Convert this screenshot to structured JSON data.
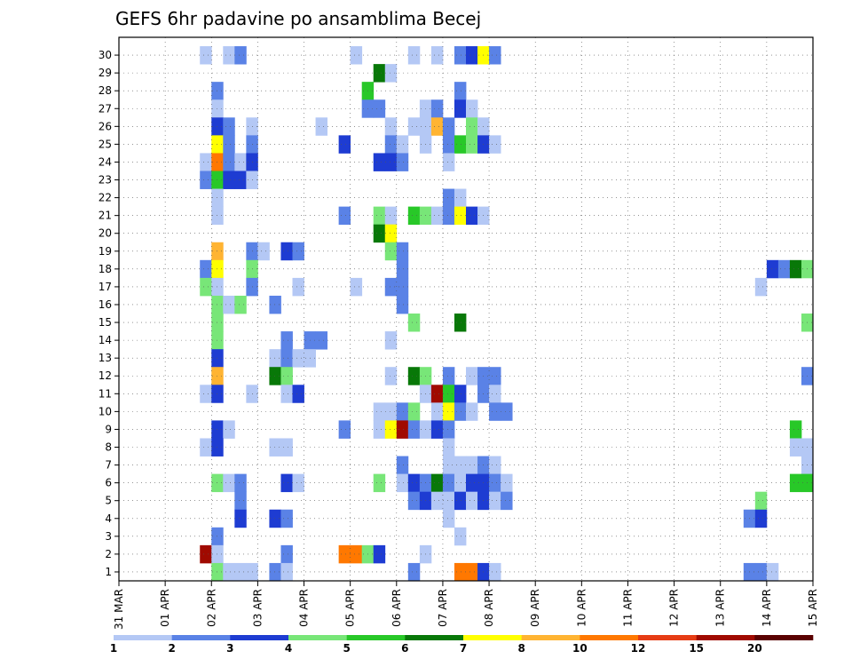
{
  "chart_data": {
    "type": "heatmap",
    "title": "GEFS 6hr padavine po ansamblima Becej",
    "xlabel": "",
    "ylabel": "",
    "x_ticks": [
      "31 MAR",
      "01 APR",
      "02 APR",
      "03 APR",
      "04 APR",
      "05 APR",
      "06 APR",
      "07 APR",
      "08 APR",
      "09 APR",
      "10 APR",
      "11 APR",
      "12 APR",
      "13 APR",
      "14 APR",
      "15 APR"
    ],
    "y_ticks": [
      "1",
      "2",
      "3",
      "4",
      "5",
      "6",
      "7",
      "8",
      "9",
      "10",
      "11",
      "12",
      "13",
      "14",
      "15",
      "16",
      "17",
      "18",
      "19",
      "20",
      "21",
      "22",
      "23",
      "24",
      "25",
      "26",
      "27",
      "28",
      "29",
      "30"
    ],
    "x_unit": "6-hour step since 31 MAR 00Z",
    "xlim": [
      0,
      60
    ],
    "ylim": [
      0.5,
      30.5
    ],
    "grid": true,
    "legend_placement": "bottom",
    "legend": {
      "levels": [
        "1",
        "2",
        "3",
        "4",
        "5",
        "6",
        "7",
        "8",
        "10",
        "12",
        "15",
        "20"
      ],
      "colors": [
        "#b4c8f5",
        "#5a82e6",
        "#1e3cd2",
        "#78e678",
        "#28c828",
        "#087808",
        "#ffff00",
        "#ffb432",
        "#ff7800",
        "#e63c14",
        "#a00a00",
        "#5a0000"
      ]
    },
    "cells": [
      [
        7,
        30,
        0
      ],
      [
        9,
        30,
        0
      ],
      [
        10,
        30,
        1
      ],
      [
        20,
        30,
        0
      ],
      [
        25,
        30,
        0
      ],
      [
        27,
        30,
        0
      ],
      [
        29,
        30,
        1
      ],
      [
        30,
        30,
        2
      ],
      [
        31,
        30,
        6
      ],
      [
        32,
        30,
        1
      ],
      [
        22,
        29,
        5
      ],
      [
        23,
        29,
        0
      ],
      [
        8,
        28,
        1
      ],
      [
        21,
        28,
        4
      ],
      [
        29,
        28,
        1
      ],
      [
        8,
        27,
        0
      ],
      [
        21,
        27,
        1
      ],
      [
        22,
        27,
        1
      ],
      [
        26,
        27,
        0
      ],
      [
        27,
        27,
        1
      ],
      [
        29,
        27,
        2
      ],
      [
        30,
        27,
        0
      ],
      [
        8,
        26,
        2
      ],
      [
        9,
        26,
        1
      ],
      [
        11,
        26,
        0
      ],
      [
        17,
        26,
        0
      ],
      [
        30,
        26,
        3
      ],
      [
        31,
        26,
        0
      ],
      [
        23,
        26,
        0
      ],
      [
        25,
        26,
        0
      ],
      [
        26,
        26,
        0
      ],
      [
        27,
        26,
        7
      ],
      [
        28,
        26,
        1
      ],
      [
        8,
        25,
        6
      ],
      [
        9,
        25,
        1
      ],
      [
        11,
        25,
        1
      ],
      [
        19,
        25,
        2
      ],
      [
        23,
        25,
        1
      ],
      [
        24,
        25,
        0
      ],
      [
        26,
        25,
        0
      ],
      [
        28,
        25,
        1
      ],
      [
        29,
        25,
        4
      ],
      [
        30,
        25,
        3
      ],
      [
        31,
        25,
        2
      ],
      [
        32,
        25,
        0
      ],
      [
        7,
        24,
        0
      ],
      [
        8,
        24,
        8
      ],
      [
        9,
        24,
        1
      ],
      [
        10,
        24,
        0
      ],
      [
        11,
        24,
        2
      ],
      [
        22,
        24,
        2
      ],
      [
        23,
        24,
        2
      ],
      [
        24,
        24,
        1
      ],
      [
        28,
        24,
        0
      ],
      [
        7,
        23,
        1
      ],
      [
        8,
        23,
        4
      ],
      [
        9,
        23,
        2
      ],
      [
        10,
        23,
        2
      ],
      [
        11,
        23,
        0
      ],
      [
        8,
        22,
        0
      ],
      [
        28,
        22,
        1
      ],
      [
        29,
        22,
        0
      ],
      [
        8,
        21,
        0
      ],
      [
        19,
        21,
        1
      ],
      [
        22,
        21,
        3
      ],
      [
        23,
        21,
        0
      ],
      [
        25,
        21,
        4
      ],
      [
        26,
        21,
        3
      ],
      [
        27,
        21,
        0
      ],
      [
        28,
        21,
        1
      ],
      [
        29,
        21,
        6
      ],
      [
        30,
        21,
        2
      ],
      [
        31,
        21,
        0
      ],
      [
        22,
        20,
        5
      ],
      [
        23,
        20,
        6
      ],
      [
        8,
        19,
        7
      ],
      [
        11,
        19,
        1
      ],
      [
        12,
        19,
        0
      ],
      [
        14,
        19,
        2
      ],
      [
        15,
        19,
        1
      ],
      [
        23,
        19,
        3
      ],
      [
        24,
        19,
        1
      ],
      [
        7,
        18,
        1
      ],
      [
        8,
        18,
        6
      ],
      [
        11,
        18,
        3
      ],
      [
        24,
        18,
        1
      ],
      [
        56,
        18,
        2
      ],
      [
        57,
        18,
        1
      ],
      [
        58,
        18,
        5
      ],
      [
        59,
        18,
        3
      ],
      [
        7,
        17,
        3
      ],
      [
        8,
        17,
        0
      ],
      [
        11,
        17,
        1
      ],
      [
        15,
        17,
        0
      ],
      [
        20,
        17,
        0
      ],
      [
        23,
        17,
        1
      ],
      [
        24,
        17,
        1
      ],
      [
        55,
        17,
        0
      ],
      [
        8,
        16,
        3
      ],
      [
        9,
        16,
        0
      ],
      [
        10,
        16,
        3
      ],
      [
        13,
        16,
        1
      ],
      [
        24,
        16,
        1
      ],
      [
        8,
        15,
        3
      ],
      [
        25,
        15,
        3
      ],
      [
        29,
        15,
        5
      ],
      [
        59,
        15,
        3
      ],
      [
        8,
        14,
        3
      ],
      [
        14,
        14,
        1
      ],
      [
        16,
        14,
        1
      ],
      [
        17,
        14,
        1
      ],
      [
        23,
        14,
        0
      ],
      [
        8,
        13,
        2
      ],
      [
        13,
        13,
        0
      ],
      [
        14,
        13,
        1
      ],
      [
        15,
        13,
        0
      ],
      [
        16,
        13,
        0
      ],
      [
        8,
        12,
        7
      ],
      [
        13,
        12,
        5
      ],
      [
        14,
        12,
        3
      ],
      [
        23,
        12,
        0
      ],
      [
        25,
        12,
        5
      ],
      [
        26,
        12,
        3
      ],
      [
        28,
        12,
        1
      ],
      [
        30,
        12,
        0
      ],
      [
        31,
        12,
        1
      ],
      [
        32,
        12,
        1
      ],
      [
        59,
        12,
        1
      ],
      [
        7,
        11,
        0
      ],
      [
        8,
        11,
        2
      ],
      [
        11,
        11,
        0
      ],
      [
        14,
        11,
        0
      ],
      [
        15,
        11,
        2
      ],
      [
        26,
        11,
        0
      ],
      [
        27,
        11,
        10
      ],
      [
        28,
        11,
        4
      ],
      [
        29,
        11,
        2
      ],
      [
        31,
        11,
        1
      ],
      [
        32,
        11,
        0
      ],
      [
        22,
        10,
        0
      ],
      [
        23,
        10,
        0
      ],
      [
        24,
        10,
        1
      ],
      [
        25,
        10,
        3
      ],
      [
        27,
        10,
        0
      ],
      [
        28,
        10,
        6
      ],
      [
        29,
        10,
        1
      ],
      [
        30,
        10,
        0
      ],
      [
        32,
        10,
        1
      ],
      [
        33,
        10,
        1
      ],
      [
        8,
        9,
        2
      ],
      [
        9,
        9,
        0
      ],
      [
        19,
        9,
        1
      ],
      [
        22,
        9,
        0
      ],
      [
        23,
        9,
        6
      ],
      [
        24,
        9,
        10
      ],
      [
        25,
        9,
        1
      ],
      [
        26,
        9,
        0
      ],
      [
        27,
        9,
        2
      ],
      [
        28,
        9,
        1
      ],
      [
        58,
        9,
        4
      ],
      [
        7,
        8,
        0
      ],
      [
        8,
        8,
        2
      ],
      [
        13,
        8,
        0
      ],
      [
        14,
        8,
        0
      ],
      [
        28,
        8,
        0
      ],
      [
        58,
        8,
        0
      ],
      [
        59,
        8,
        0
      ],
      [
        24,
        7,
        1
      ],
      [
        28,
        7,
        0
      ],
      [
        29,
        7,
        0
      ],
      [
        30,
        7,
        0
      ],
      [
        31,
        7,
        1
      ],
      [
        32,
        7,
        0
      ],
      [
        59,
        7,
        0
      ],
      [
        8,
        6,
        3
      ],
      [
        9,
        6,
        0
      ],
      [
        10,
        6,
        1
      ],
      [
        14,
        6,
        2
      ],
      [
        15,
        6,
        0
      ],
      [
        22,
        6,
        3
      ],
      [
        24,
        6,
        0
      ],
      [
        25,
        6,
        2
      ],
      [
        26,
        6,
        1
      ],
      [
        27,
        6,
        5
      ],
      [
        28,
        6,
        1
      ],
      [
        29,
        6,
        0
      ],
      [
        30,
        6,
        2
      ],
      [
        31,
        6,
        2
      ],
      [
        32,
        6,
        1
      ],
      [
        33,
        6,
        0
      ],
      [
        58,
        6,
        4
      ],
      [
        59,
        6,
        4
      ],
      [
        10,
        5,
        1
      ],
      [
        25,
        5,
        1
      ],
      [
        26,
        5,
        2
      ],
      [
        27,
        5,
        0
      ],
      [
        28,
        5,
        0
      ],
      [
        29,
        5,
        2
      ],
      [
        30,
        5,
        0
      ],
      [
        31,
        5,
        2
      ],
      [
        32,
        5,
        0
      ],
      [
        33,
        5,
        1
      ],
      [
        55,
        5,
        3
      ],
      [
        10,
        4,
        2
      ],
      [
        13,
        4,
        2
      ],
      [
        14,
        4,
        1
      ],
      [
        28,
        4,
        0
      ],
      [
        54,
        4,
        1
      ],
      [
        55,
        4,
        2
      ],
      [
        8,
        3,
        1
      ],
      [
        29,
        3,
        0
      ],
      [
        7,
        2,
        10
      ],
      [
        8,
        2,
        0
      ],
      [
        14,
        2,
        1
      ],
      [
        19,
        2,
        8
      ],
      [
        20,
        2,
        8
      ],
      [
        21,
        2,
        3
      ],
      [
        22,
        2,
        2
      ],
      [
        26,
        2,
        0
      ],
      [
        8,
        1,
        3
      ],
      [
        9,
        1,
        0
      ],
      [
        10,
        1,
        0
      ],
      [
        11,
        1,
        0
      ],
      [
        13,
        1,
        1
      ],
      [
        14,
        1,
        0
      ],
      [
        25,
        1,
        1
      ],
      [
        29,
        1,
        8
      ],
      [
        30,
        1,
        8
      ],
      [
        31,
        1,
        2
      ],
      [
        32,
        1,
        0
      ],
      [
        54,
        1,
        1
      ],
      [
        55,
        1,
        1
      ],
      [
        56,
        1,
        0
      ]
    ]
  }
}
